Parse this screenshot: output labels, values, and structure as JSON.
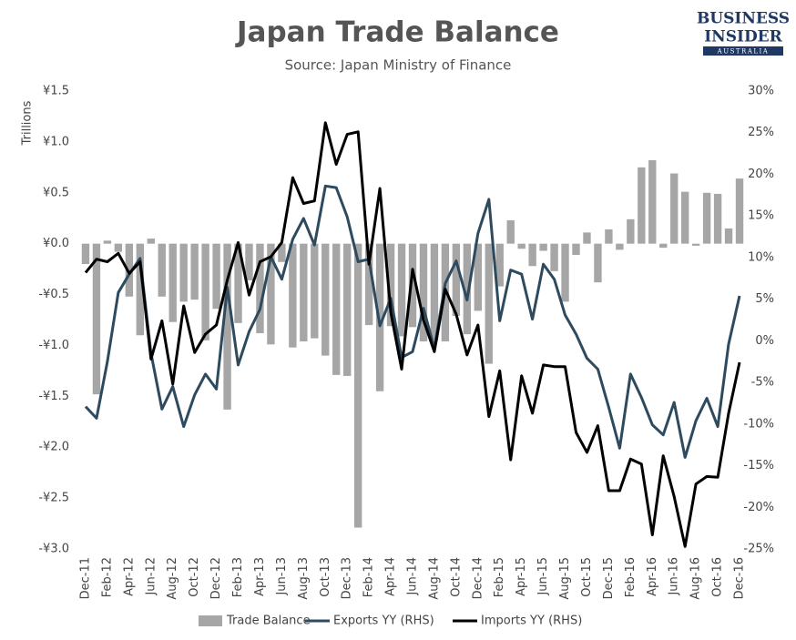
{
  "logo": {
    "line1": "BUSINESS",
    "line2": "INSIDER",
    "line3": "AUSTRALIA"
  },
  "chart_data": {
    "type": "bar",
    "title": "Japan Trade Balance",
    "subtitle": "Source: Japan Ministry of Finance",
    "ylabel": "Trillions",
    "categories": [
      "Dec-11",
      null,
      "Feb-12",
      null,
      "Apr-12",
      null,
      "Jun-12",
      null,
      "Aug-12",
      null,
      "Oct-12",
      null,
      "Dec-12",
      null,
      "Feb-13",
      null,
      "Apr-13",
      null,
      "Jun-13",
      null,
      "Aug-13",
      null,
      "Oct-13",
      null,
      "Dec-13",
      null,
      "Feb-14",
      null,
      "Apr-14",
      null,
      "Jun-14",
      null,
      "Aug-14",
      null,
      "Oct-14",
      null,
      "Dec-14",
      null,
      "Feb-15",
      null,
      "Apr-15",
      null,
      "Jun-15",
      null,
      "Aug-15",
      null,
      "Oct-15",
      null,
      "Dec-15",
      null,
      "Feb-16",
      null,
      "Apr-16",
      null,
      "Jun-16",
      null,
      "Aug-16",
      null,
      "Oct-16",
      null,
      "Dec-16"
    ],
    "series": [
      {
        "name": "Trade Balance",
        "type": "bar",
        "color": "#a6a6a6",
        "values": [
          -0.2,
          -1.48,
          0.03,
          -0.08,
          -0.52,
          -0.9,
          0.05,
          -0.52,
          -0.77,
          -0.57,
          -0.55,
          -0.95,
          -0.64,
          -1.63,
          -0.78,
          -0.36,
          -0.88,
          -0.99,
          -0.18,
          -1.02,
          -0.96,
          -0.93,
          -1.1,
          -1.29,
          -1.3,
          -2.79,
          -0.8,
          -1.45,
          -0.81,
          -0.91,
          -0.82,
          -0.96,
          -0.95,
          -0.96,
          -0.71,
          -0.89,
          -0.66,
          -1.18,
          -0.42,
          0.23,
          -0.05,
          -0.22,
          -0.07,
          -0.27,
          -0.57,
          -0.11,
          0.11,
          -0.38,
          0.14,
          -0.06,
          0.24,
          0.75,
          0.82,
          -0.04,
          0.69,
          0.51,
          -0.02,
          0.5,
          0.49,
          0.15,
          0.64
        ]
      },
      {
        "name": "Exports YY (RHS)",
        "type": "line",
        "axis": "y2",
        "color": "#2e4a5e",
        "values": [
          -7.9,
          -9.3,
          -2.5,
          5.8,
          8.0,
          9.9,
          -1.5,
          -8.2,
          -5.5,
          -10.3,
          -6.5,
          -4.0,
          -5.8,
          6.4,
          -2.9,
          1.1,
          3.8,
          10.1,
          7.4,
          12.2,
          14.7,
          11.5,
          18.6,
          18.4,
          14.9,
          9.5,
          9.8,
          1.8,
          5.1,
          -2.0,
          -1.3,
          3.9,
          -0.9,
          6.9,
          9.6,
          4.9,
          12.9,
          17.0,
          2.4,
          8.5,
          8.0,
          2.6,
          9.2,
          7.4,
          3.1,
          0.8,
          -2.1,
          -3.4,
          -8.0,
          -12.9,
          -4.0,
          -6.8,
          -10.1,
          -11.3,
          -7.4,
          -14.0,
          -9.6,
          -6.9,
          -10.3,
          -0.4,
          5.4
        ]
      },
      {
        "name": "Imports YY (RHS)",
        "type": "line",
        "axis": "y2",
        "color": "#000000",
        "values": [
          8.2,
          9.8,
          9.5,
          10.5,
          8.1,
          9.5,
          -2.2,
          2.4,
          -5.2,
          4.2,
          -1.4,
          0.8,
          1.9,
          7.3,
          11.8,
          5.5,
          9.5,
          10.1,
          11.8,
          19.6,
          16.5,
          16.8,
          26.2,
          21.2,
          24.8,
          25.1,
          9.2,
          18.3,
          3.4,
          -3.4,
          8.6,
          2.5,
          -1.3,
          6.2,
          3.2,
          -1.7,
          1.9,
          -9.1,
          -3.6,
          -14.3,
          -4.2,
          -8.7,
          -2.9,
          -3.1,
          -3.1,
          -11.0,
          -13.4,
          -10.2,
          -18.0,
          -18.0,
          -14.2,
          -14.8,
          -23.3,
          -13.8,
          -18.7,
          -24.7,
          -17.2,
          -16.3,
          -16.4,
          -8.7,
          -2.6
        ]
      }
    ],
    "ylim": [
      -3,
      1.5
    ],
    "yticks": [
      {
        "value": -3,
        "label": "-¥3.0"
      },
      {
        "value": -2.5,
        "label": "-¥2.5"
      },
      {
        "value": -2,
        "label": "-¥2.0"
      },
      {
        "value": -1.5,
        "label": "-¥1.5"
      },
      {
        "value": -1,
        "label": "-¥1.0"
      },
      {
        "value": -0.5,
        "label": "-¥0.5"
      },
      {
        "value": 0,
        "label": "¥0.0"
      },
      {
        "value": 0.5,
        "label": "¥0.5"
      },
      {
        "value": 1,
        "label": "¥1.0"
      },
      {
        "value": 1.5,
        "label": "¥1.5"
      }
    ],
    "y2lim": [
      -25,
      30
    ],
    "y2ticks": [
      {
        "value": -25,
        "label": "-25%"
      },
      {
        "value": -20,
        "label": "-20%"
      },
      {
        "value": -15,
        "label": "-15%"
      },
      {
        "value": -10,
        "label": "-10%"
      },
      {
        "value": -5,
        "label": "-5%"
      },
      {
        "value": 0,
        "label": "0%"
      },
      {
        "value": 5,
        "label": "5%"
      },
      {
        "value": 10,
        "label": "10%"
      },
      {
        "value": 15,
        "label": "15%"
      },
      {
        "value": 20,
        "label": "20%"
      },
      {
        "value": 25,
        "label": "25%"
      },
      {
        "value": 30,
        "label": "30%"
      }
    ],
    "grid": false,
    "legend": "bottom"
  }
}
